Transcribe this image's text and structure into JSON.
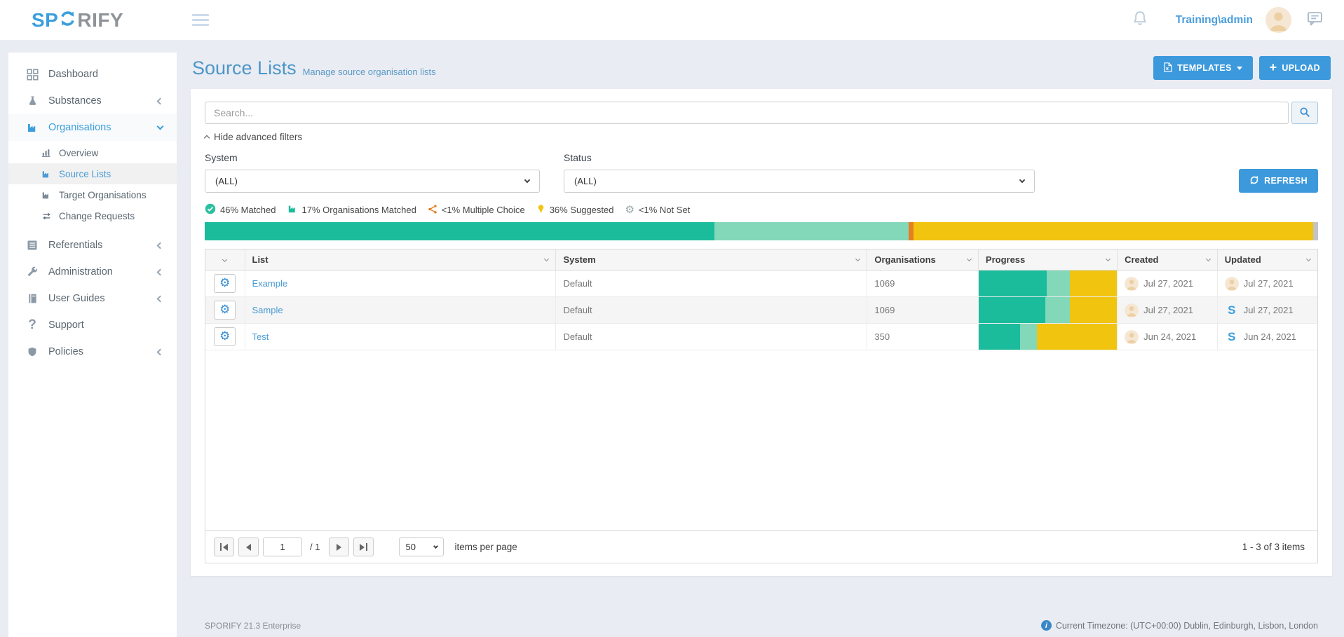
{
  "topbar": {
    "logo_sp": "SP",
    "logo_rify": "RIFY",
    "username": "Training\\admin"
  },
  "sidebar": {
    "dashboard": "Dashboard",
    "substances": "Substances",
    "organisations": "Organisations",
    "overview": "Overview",
    "source_lists": "Source Lists",
    "target_organisations": "Target Organisations",
    "change_requests": "Change Requests",
    "referentials": "Referentials",
    "administration": "Administration",
    "user_guides": "User Guides",
    "support": "Support",
    "policies": "Policies"
  },
  "page": {
    "title": "Source Lists",
    "subtitle": "Manage source organisation lists",
    "templates_button": "TEMPLATES",
    "upload_button": "UPLOAD"
  },
  "filters": {
    "search_placeholder": "Search...",
    "hide_filters": "Hide advanced filters",
    "system_label": "System",
    "system_value": "(ALL)",
    "status_label": "Status",
    "status_value": "(ALL)",
    "refresh_button": "REFRESH"
  },
  "legend": {
    "matched": "46% Matched",
    "org_matched": "17% Organisations Matched",
    "multiple_choice": "<1% Multiple Choice",
    "suggested": "36% Suggested",
    "not_set": "<1% Not Set"
  },
  "summary_bar": {
    "matched": 45.8,
    "org_matched": 17.4,
    "multiple_choice": 0.45,
    "suggested": 35.9,
    "not_set": 0.45
  },
  "colors": {
    "accent": "#3b99dc",
    "matched": "#1abc9c",
    "org_matched": "#82d8b8",
    "multiple_choice": "#e67e22",
    "suggested": "#f1c40f",
    "not_set": "#c3c3c3"
  },
  "table": {
    "headers": {
      "list": "List",
      "system": "System",
      "organisations": "Organisations",
      "progress": "Progress",
      "created": "Created",
      "updated": "Updated"
    },
    "rows": [
      {
        "list": "Example",
        "system": "Default",
        "organisations": "1069",
        "progress": {
          "matched": 49,
          "org_matched": 17,
          "suggested": 34
        },
        "created": "Jul 27, 2021",
        "updated": "Jul 27, 2021",
        "updated_icon": "user"
      },
      {
        "list": "Sample",
        "system": "Default",
        "organisations": "1069",
        "progress": {
          "matched": 48,
          "org_matched": 18,
          "suggested": 34
        },
        "created": "Jul 27, 2021",
        "updated": "Jul 27, 2021",
        "updated_icon": "sporify"
      },
      {
        "list": "Test",
        "system": "Default",
        "organisations": "350",
        "progress": {
          "matched": 30,
          "org_matched": 12,
          "suggested": 58
        },
        "created": "Jun 24, 2021",
        "updated": "Jun 24, 2021",
        "updated_icon": "sporify"
      }
    ]
  },
  "pager": {
    "page": "1",
    "of": "/ 1",
    "page_size": "50",
    "items_per_page": "items per page",
    "range": "1 - 3 of 3 items"
  },
  "footer": {
    "version": "SPORIFY 21.3 Enterprise",
    "timezone": "Current Timezone: (UTC+00:00) Dublin, Edinburgh, Lisbon, London"
  }
}
